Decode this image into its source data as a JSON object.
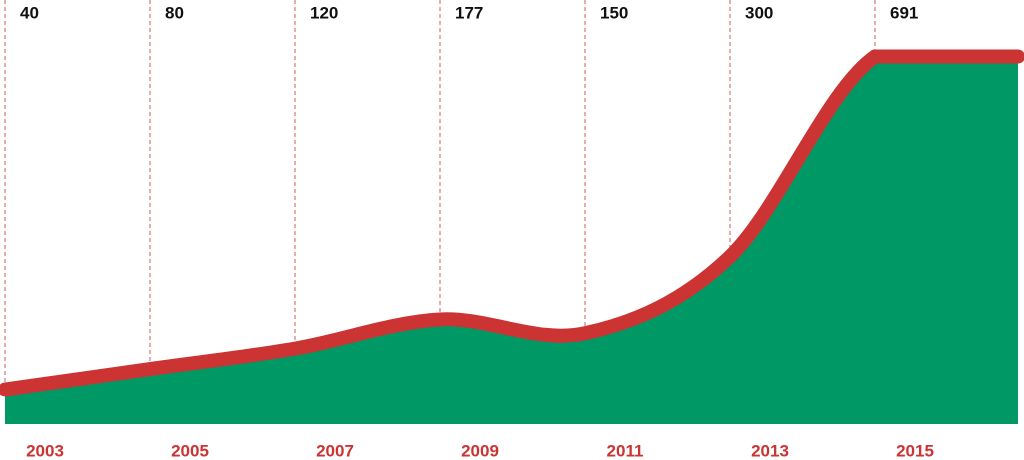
{
  "chart_data": {
    "type": "area",
    "categories": [
      "2003",
      "2005",
      "2007",
      "2009",
      "2011",
      "2013",
      "2015"
    ],
    "values": [
      40,
      80,
      120,
      177,
      150,
      300,
      691
    ],
    "color": "#009966",
    "line_color": "#cc3333",
    "label_color": "#cc3333"
  }
}
